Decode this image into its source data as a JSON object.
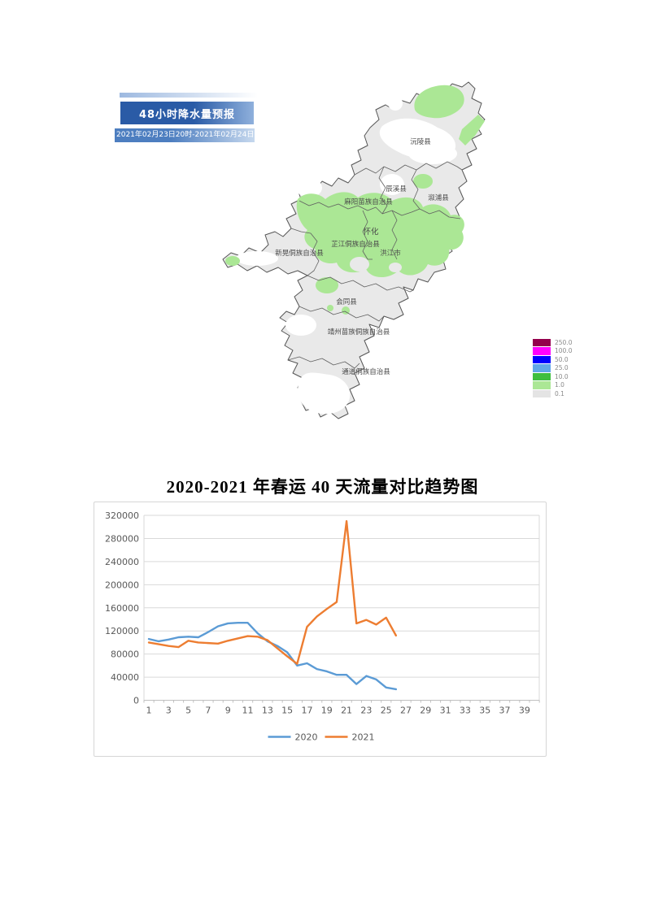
{
  "map": {
    "banner_title": "48小时降水量预报",
    "banner_date_range": "2021年02月23日20时-2021年02月24日20时",
    "labels": {
      "yuanling": "沅陵县",
      "chenxi": "辰溪县",
      "xupu": "溆浦县",
      "mayang": "麻阳苗族自治县",
      "huaihua": "怀化",
      "zhijiang": "芷江侗族自治县",
      "hongjiang": "洪江市",
      "xinhuang": "新晃侗族自治县",
      "huitong": "会同县",
      "jingzhou": "靖州苗族侗族自治县",
      "tongdao": "通道侗族自治县"
    },
    "legend": [
      {
        "value": "250.0",
        "color": "#94004c"
      },
      {
        "value": "100.0",
        "color": "#ff00ff"
      },
      {
        "value": "50.0",
        "color": "#0000ff"
      },
      {
        "value": "25.0",
        "color": "#61a7e8"
      },
      {
        "value": "10.0",
        "color": "#3ebe3e"
      },
      {
        "value": "1.0",
        "color": "#abe795"
      },
      {
        "value": "0.1",
        "color": "#e4e4e4"
      }
    ],
    "colors": {
      "land_base": "#e9e9e9",
      "rain_light": "#abe795",
      "boundary": "#606060"
    }
  },
  "chart_data": {
    "type": "line",
    "title": "2020-2021 年春运 40 天流量对比趋势图",
    "xlabel": "",
    "ylabel": "",
    "x": [
      1,
      2,
      3,
      4,
      5,
      6,
      7,
      8,
      9,
      10,
      11,
      12,
      13,
      14,
      15,
      16,
      17,
      18,
      19,
      20,
      21,
      22,
      23,
      24,
      25,
      26
    ],
    "x_max": 40,
    "x_label_step": 2,
    "x_labels": [
      "1",
      "3",
      "5",
      "7",
      "9",
      "11",
      "13",
      "15",
      "17",
      "19",
      "21",
      "23",
      "25",
      "27",
      "29",
      "31",
      "33",
      "35",
      "37",
      "39"
    ],
    "ylim": [
      0,
      320000
    ],
    "y_tick_step": 40000,
    "y_ticks": [
      0,
      40000,
      80000,
      120000,
      160000,
      200000,
      240000,
      280000,
      320000
    ],
    "grid": true,
    "legend_position": "bottom",
    "grid_color": "#d9d9d9",
    "axis_color": "#bfbfbf",
    "label_color": "#595959",
    "series": [
      {
        "name": "2020",
        "color": "#5b9bd5",
        "values": [
          106000,
          102000,
          105000,
          109000,
          110000,
          109000,
          118000,
          128000,
          133000,
          134000,
          134000,
          116000,
          102000,
          94000,
          83000,
          60000,
          64000,
          54000,
          50000,
          44000,
          44000,
          28000,
          42000,
          36000,
          22000,
          19000
        ]
      },
      {
        "name": "2021",
        "color": "#ed7d31",
        "values": [
          100000,
          97000,
          94000,
          92000,
          103000,
          100000,
          99000,
          98000,
          103000,
          107000,
          111000,
          110000,
          104000,
          90000,
          76000,
          63000,
          127000,
          145000,
          158000,
          170000,
          310000,
          133000,
          139000,
          131000,
          143000,
          112000
        ]
      }
    ]
  }
}
